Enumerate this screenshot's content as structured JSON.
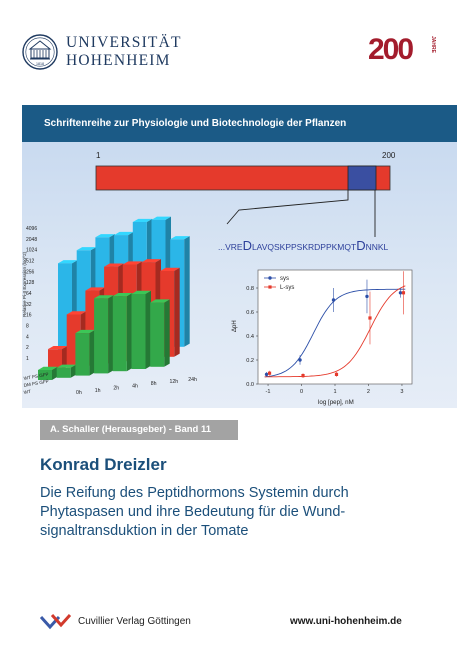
{
  "header": {
    "university_name": "UNIVERSITÄT",
    "university_city": "HOHENHEIM",
    "seal_year": "1818",
    "anniversary_number": "200",
    "anniversary_word": "JAHRE"
  },
  "series": {
    "title": "Schriftenreihe zur Physiologie und Biotechnologie der Pflanzen"
  },
  "cover_figures": {
    "sequence_scale_start": "1",
    "sequence_scale_end": "200",
    "peptide_sequence": {
      "prefix": "...VRE",
      "d1": "D",
      "middle": "LAVQSKPPSKRDPPKMQT",
      "d2": "D",
      "suffix": "NNKL"
    },
    "colors": {
      "precursor_bar": "#e53a2c",
      "highlight_region": "#3a4fa1",
      "bar_blue": "#2bb6e8",
      "bar_red": "#e53a2c",
      "bar_green": "#33a84a",
      "sys_series": "#2c4fa8",
      "lsys_series": "#e53a2c"
    }
  },
  "chart_data": [
    {
      "type": "bar",
      "ylabel": "Relative Pi-II Expression (log^2)",
      "ytick_labels": [
        "1",
        "2",
        "4",
        "8",
        "16",
        "32",
        "64",
        "128",
        "256",
        "512",
        "1024",
        "2048",
        "4096"
      ],
      "categories": [
        "0h",
        "1h",
        "2h",
        "4h",
        "8h",
        "12h",
        "24h"
      ],
      "series": [
        {
          "name": "WT",
          "values": [
            256,
            512,
            1024,
            1024,
            2048,
            2048,
            512
          ]
        },
        {
          "name": "DM PS GFP",
          "values": [
            2,
            16,
            64,
            256,
            256,
            256,
            128
          ]
        },
        {
          "name": "WT PS GFP",
          "values": [
            1,
            1,
            8,
            64,
            64,
            64,
            32
          ]
        }
      ]
    },
    {
      "type": "scatter",
      "xlabel": "log [pep], nM",
      "ylabel": "ΔpH",
      "x_tick_labels": [
        "-1",
        "0",
        "1",
        "2",
        "3"
      ],
      "y_tick_labels": [
        "0.0",
        "0.2",
        "0.4",
        "0.6",
        "0.8"
      ],
      "xlim": [
        -1.3,
        3.3
      ],
      "ylim": [
        0.0,
        0.95
      ],
      "legend_position": "top-left",
      "series": [
        {
          "name": "sys",
          "x": [
            -1,
            0,
            1,
            2,
            3
          ],
          "y": [
            0.08,
            0.2,
            0.7,
            0.73,
            0.76
          ]
        },
        {
          "name": "L-sys",
          "x": [
            -1,
            0,
            1,
            2,
            3
          ],
          "y": [
            0.09,
            0.07,
            0.08,
            0.55,
            0.76
          ]
        }
      ]
    }
  ],
  "editor": {
    "label": "A. Schaller (Herausgeber) - Band 11"
  },
  "author": {
    "name": "Konrad Dreizler"
  },
  "book_title": {
    "line1": "Die Reifung des Peptidhormons Systemin durch",
    "line2": "Phytaspasen und ihre Bedeutung für die Wund-",
    "line3": "signaltransduktion in der Tomate"
  },
  "footer": {
    "publisher": "Cuvillier Verlag Göttingen",
    "website": "www.uni-hohenheim.de"
  }
}
